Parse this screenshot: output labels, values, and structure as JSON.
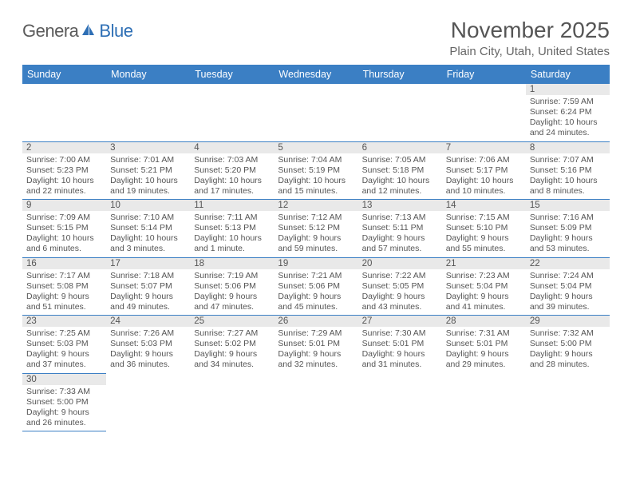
{
  "logo": {
    "part1": "Genera",
    "part2": "Blue"
  },
  "title": "November 2025",
  "location": "Plain City, Utah, United States",
  "colors": {
    "header_bg": "#3b7fc4",
    "header_text": "#ffffff",
    "daynum_bg": "#e9e9e9",
    "border": "#3b7fc4",
    "text": "#555555",
    "logo_gray": "#5b5b5b",
    "logo_blue": "#2e6fb5"
  },
  "day_headers": [
    "Sunday",
    "Monday",
    "Tuesday",
    "Wednesday",
    "Thursday",
    "Friday",
    "Saturday"
  ],
  "weeks": [
    [
      null,
      null,
      null,
      null,
      null,
      null,
      {
        "n": "1",
        "sr": "7:59 AM",
        "ss": "6:24 PM",
        "dl": "10 hours and 24 minutes."
      }
    ],
    [
      {
        "n": "2",
        "sr": "7:00 AM",
        "ss": "5:23 PM",
        "dl": "10 hours and 22 minutes."
      },
      {
        "n": "3",
        "sr": "7:01 AM",
        "ss": "5:21 PM",
        "dl": "10 hours and 19 minutes."
      },
      {
        "n": "4",
        "sr": "7:03 AM",
        "ss": "5:20 PM",
        "dl": "10 hours and 17 minutes."
      },
      {
        "n": "5",
        "sr": "7:04 AM",
        "ss": "5:19 PM",
        "dl": "10 hours and 15 minutes."
      },
      {
        "n": "6",
        "sr": "7:05 AM",
        "ss": "5:18 PM",
        "dl": "10 hours and 12 minutes."
      },
      {
        "n": "7",
        "sr": "7:06 AM",
        "ss": "5:17 PM",
        "dl": "10 hours and 10 minutes."
      },
      {
        "n": "8",
        "sr": "7:07 AM",
        "ss": "5:16 PM",
        "dl": "10 hours and 8 minutes."
      }
    ],
    [
      {
        "n": "9",
        "sr": "7:09 AM",
        "ss": "5:15 PM",
        "dl": "10 hours and 6 minutes."
      },
      {
        "n": "10",
        "sr": "7:10 AM",
        "ss": "5:14 PM",
        "dl": "10 hours and 3 minutes."
      },
      {
        "n": "11",
        "sr": "7:11 AM",
        "ss": "5:13 PM",
        "dl": "10 hours and 1 minute."
      },
      {
        "n": "12",
        "sr": "7:12 AM",
        "ss": "5:12 PM",
        "dl": "9 hours and 59 minutes."
      },
      {
        "n": "13",
        "sr": "7:13 AM",
        "ss": "5:11 PM",
        "dl": "9 hours and 57 minutes."
      },
      {
        "n": "14",
        "sr": "7:15 AM",
        "ss": "5:10 PM",
        "dl": "9 hours and 55 minutes."
      },
      {
        "n": "15",
        "sr": "7:16 AM",
        "ss": "5:09 PM",
        "dl": "9 hours and 53 minutes."
      }
    ],
    [
      {
        "n": "16",
        "sr": "7:17 AM",
        "ss": "5:08 PM",
        "dl": "9 hours and 51 minutes."
      },
      {
        "n": "17",
        "sr": "7:18 AM",
        "ss": "5:07 PM",
        "dl": "9 hours and 49 minutes."
      },
      {
        "n": "18",
        "sr": "7:19 AM",
        "ss": "5:06 PM",
        "dl": "9 hours and 47 minutes."
      },
      {
        "n": "19",
        "sr": "7:21 AM",
        "ss": "5:06 PM",
        "dl": "9 hours and 45 minutes."
      },
      {
        "n": "20",
        "sr": "7:22 AM",
        "ss": "5:05 PM",
        "dl": "9 hours and 43 minutes."
      },
      {
        "n": "21",
        "sr": "7:23 AM",
        "ss": "5:04 PM",
        "dl": "9 hours and 41 minutes."
      },
      {
        "n": "22",
        "sr": "7:24 AM",
        "ss": "5:04 PM",
        "dl": "9 hours and 39 minutes."
      }
    ],
    [
      {
        "n": "23",
        "sr": "7:25 AM",
        "ss": "5:03 PM",
        "dl": "9 hours and 37 minutes."
      },
      {
        "n": "24",
        "sr": "7:26 AM",
        "ss": "5:03 PM",
        "dl": "9 hours and 36 minutes."
      },
      {
        "n": "25",
        "sr": "7:27 AM",
        "ss": "5:02 PM",
        "dl": "9 hours and 34 minutes."
      },
      {
        "n": "26",
        "sr": "7:29 AM",
        "ss": "5:01 PM",
        "dl": "9 hours and 32 minutes."
      },
      {
        "n": "27",
        "sr": "7:30 AM",
        "ss": "5:01 PM",
        "dl": "9 hours and 31 minutes."
      },
      {
        "n": "28",
        "sr": "7:31 AM",
        "ss": "5:01 PM",
        "dl": "9 hours and 29 minutes."
      },
      {
        "n": "29",
        "sr": "7:32 AM",
        "ss": "5:00 PM",
        "dl": "9 hours and 28 minutes."
      }
    ],
    [
      {
        "n": "30",
        "sr": "7:33 AM",
        "ss": "5:00 PM",
        "dl": "9 hours and 26 minutes."
      },
      null,
      null,
      null,
      null,
      null,
      null
    ]
  ],
  "labels": {
    "sunrise": "Sunrise:",
    "sunset": "Sunset:",
    "daylight": "Daylight:"
  }
}
